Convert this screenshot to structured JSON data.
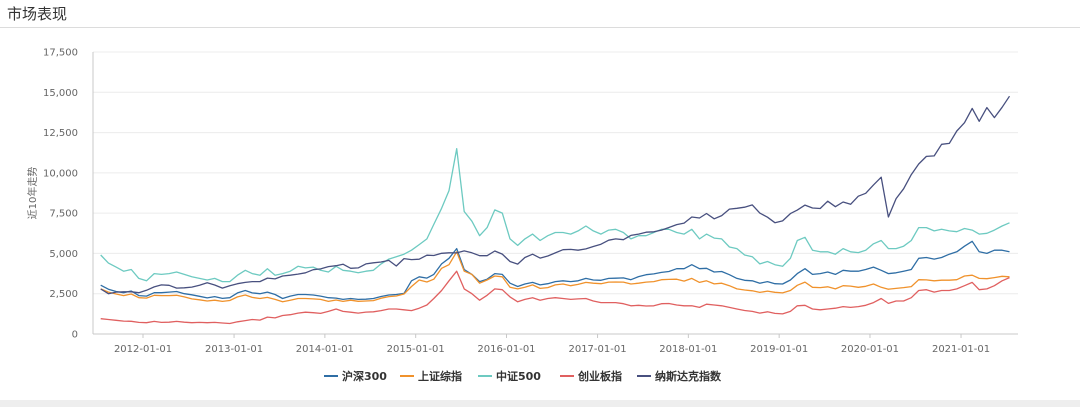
{
  "section": {
    "title": "市场表现"
  },
  "chart_data": {
    "type": "line",
    "xlabel": "",
    "ylabel": "近10年走势",
    "ylim": [
      0,
      17500
    ],
    "xlim": [
      "2011-06-14",
      "2021-08-18"
    ],
    "y_ticks": [
      "0",
      "2,500",
      "5,000",
      "7,500",
      "10,000",
      "12,500",
      "15,000",
      "17,500"
    ],
    "x_ticks": [
      "2012-01-01",
      "2013-01-01",
      "2014-01-01",
      "2015-01-01",
      "2016-01-01",
      "2017-01-01",
      "2018-01-01",
      "2019-01-01",
      "2020-01-01",
      "2021-01-01"
    ],
    "grid": true,
    "legend_position": "bottom",
    "x": [
      "2011-07-15",
      "2011-08-15",
      "2011-09-15",
      "2011-10-15",
      "2011-11-15",
      "2011-12-15",
      "2012-01-15",
      "2012-02-15",
      "2012-03-15",
      "2012-04-15",
      "2012-05-15",
      "2012-06-15",
      "2012-07-15",
      "2012-08-15",
      "2012-09-15",
      "2012-10-15",
      "2012-11-15",
      "2012-12-15",
      "2013-01-15",
      "2013-02-15",
      "2013-03-15",
      "2013-04-15",
      "2013-05-15",
      "2013-06-15",
      "2013-07-15",
      "2013-08-15",
      "2013-09-15",
      "2013-10-15",
      "2013-11-15",
      "2013-12-15",
      "2014-01-15",
      "2014-02-15",
      "2014-03-15",
      "2014-04-15",
      "2014-05-15",
      "2014-06-15",
      "2014-07-15",
      "2014-08-15",
      "2014-09-15",
      "2014-10-15",
      "2014-11-15",
      "2014-12-15",
      "2015-01-15",
      "2015-02-15",
      "2015-03-15",
      "2015-04-15",
      "2015-05-15",
      "2015-06-15",
      "2015-07-15",
      "2015-08-15",
      "2015-09-15",
      "2015-10-15",
      "2015-11-15",
      "2015-12-15",
      "2016-01-15",
      "2016-02-15",
      "2016-03-15",
      "2016-04-15",
      "2016-05-15",
      "2016-06-15",
      "2016-07-15",
      "2016-08-15",
      "2016-09-15",
      "2016-10-15",
      "2016-11-15",
      "2016-12-15",
      "2017-01-15",
      "2017-02-15",
      "2017-03-15",
      "2017-04-15",
      "2017-05-15",
      "2017-06-15",
      "2017-07-15",
      "2017-08-15",
      "2017-09-15",
      "2017-10-15",
      "2017-11-15",
      "2017-12-15",
      "2018-01-15",
      "2018-02-15",
      "2018-03-15",
      "2018-04-15",
      "2018-05-15",
      "2018-06-15",
      "2018-07-15",
      "2018-08-15",
      "2018-09-15",
      "2018-10-15",
      "2018-11-15",
      "2018-12-15",
      "2019-01-15",
      "2019-02-15",
      "2019-03-15",
      "2019-04-15",
      "2019-05-15",
      "2019-06-15",
      "2019-07-15",
      "2019-08-15",
      "2019-09-15",
      "2019-10-15",
      "2019-11-15",
      "2019-12-15",
      "2020-01-15",
      "2020-02-15",
      "2020-03-15",
      "2020-04-15",
      "2020-05-15",
      "2020-06-15",
      "2020-07-15",
      "2020-08-15",
      "2020-09-15",
      "2020-10-15",
      "2020-11-15",
      "2020-12-15",
      "2021-01-15",
      "2021-02-15",
      "2021-03-15",
      "2021-04-15",
      "2021-05-15",
      "2021-06-15",
      "2021-07-15"
    ],
    "series": [
      {
        "name": "沪深300",
        "color": "#2f6ea5",
        "values": [
          3030,
          2780,
          2640,
          2560,
          2670,
          2380,
          2350,
          2560,
          2560,
          2600,
          2640,
          2500,
          2430,
          2340,
          2240,
          2320,
          2210,
          2250,
          2550,
          2700,
          2550,
          2500,
          2600,
          2450,
          2200,
          2350,
          2450,
          2450,
          2420,
          2350,
          2250,
          2230,
          2150,
          2200,
          2150,
          2160,
          2200,
          2330,
          2420,
          2450,
          2520,
          3300,
          3550,
          3470,
          3700,
          4350,
          4700,
          5300,
          4000,
          3700,
          3250,
          3400,
          3750,
          3700,
          3150,
          2950,
          3100,
          3200,
          3050,
          3120,
          3250,
          3300,
          3250,
          3300,
          3450,
          3350,
          3330,
          3450,
          3460,
          3480,
          3370,
          3560,
          3680,
          3730,
          3820,
          3880,
          4050,
          4050,
          4300,
          4050,
          4080,
          3850,
          3880,
          3680,
          3450,
          3330,
          3300,
          3150,
          3250,
          3120,
          3100,
          3350,
          3750,
          4050,
          3700,
          3750,
          3850,
          3700,
          3950,
          3900,
          3900,
          4000,
          4150,
          3950,
          3750,
          3800,
          3900,
          4000,
          4700,
          4750,
          4650,
          4750,
          4950,
          5100,
          5450,
          5750,
          5100,
          5000,
          5200,
          5200,
          5100
        ]
      },
      {
        "name": "上证综指",
        "color": "#f0922c",
        "values": [
          2800,
          2600,
          2480,
          2380,
          2480,
          2250,
          2230,
          2400,
          2380,
          2380,
          2400,
          2300,
          2180,
          2120,
          2050,
          2100,
          2020,
          2080,
          2300,
          2420,
          2270,
          2200,
          2270,
          2150,
          2000,
          2100,
          2200,
          2200,
          2180,
          2150,
          2020,
          2110,
          2020,
          2100,
          2030,
          2050,
          2070,
          2220,
          2320,
          2360,
          2480,
          2950,
          3350,
          3230,
          3400,
          4080,
          4300,
          5100,
          3900,
          3700,
          3150,
          3350,
          3600,
          3550,
          2900,
          2800,
          2900,
          3050,
          2830,
          2880,
          3050,
          3100,
          3000,
          3080,
          3200,
          3150,
          3120,
          3220,
          3230,
          3220,
          3100,
          3150,
          3220,
          3250,
          3370,
          3390,
          3400,
          3280,
          3450,
          3200,
          3300,
          3110,
          3150,
          3000,
          2800,
          2730,
          2680,
          2580,
          2660,
          2590,
          2550,
          2700,
          3020,
          3220,
          2900,
          2880,
          2930,
          2800,
          3000,
          2970,
          2900,
          2960,
          3100,
          2900,
          2780,
          2830,
          2880,
          2940,
          3370,
          3360,
          3300,
          3340,
          3340,
          3370,
          3600,
          3650,
          3450,
          3430,
          3500,
          3580,
          3550
        ]
      },
      {
        "name": "中证500",
        "color": "#6dcac1",
        "values": [
          4900,
          4400,
          4150,
          3900,
          4000,
          3450,
          3300,
          3750,
          3700,
          3750,
          3850,
          3700,
          3550,
          3450,
          3350,
          3450,
          3250,
          3250,
          3650,
          3950,
          3750,
          3650,
          4050,
          3650,
          3750,
          3900,
          4200,
          4100,
          4150,
          3950,
          3850,
          4200,
          3950,
          3900,
          3800,
          3900,
          3950,
          4350,
          4650,
          4800,
          4950,
          5200,
          5550,
          5900,
          6800,
          7800,
          8900,
          11500,
          7600,
          7000,
          6100,
          6600,
          7700,
          7500,
          5900,
          5500,
          5900,
          6200,
          5800,
          6100,
          6300,
          6300,
          6200,
          6400,
          6700,
          6400,
          6200,
          6450,
          6500,
          6300,
          5900,
          6100,
          6100,
          6300,
          6500,
          6500,
          6300,
          6200,
          6500,
          5900,
          6200,
          5950,
          5900,
          5400,
          5300,
          4900,
          4800,
          4350,
          4500,
          4300,
          4200,
          4700,
          5800,
          6000,
          5200,
          5100,
          5100,
          4950,
          5300,
          5100,
          5050,
          5200,
          5600,
          5800,
          5300,
          5300,
          5450,
          5800,
          6600,
          6600,
          6400,
          6500,
          6400,
          6350,
          6550,
          6450,
          6200,
          6250,
          6450,
          6700,
          6900
        ]
      },
      {
        "name": "创业板指",
        "color": "#e06060",
        "values": [
          950,
          900,
          850,
          800,
          790,
          720,
          700,
          780,
          720,
          730,
          780,
          730,
          700,
          720,
          700,
          720,
          680,
          650,
          760,
          830,
          900,
          860,
          1050,
          1000,
          1150,
          1200,
          1300,
          1350,
          1320,
          1280,
          1400,
          1550,
          1400,
          1350,
          1300,
          1360,
          1380,
          1450,
          1550,
          1550,
          1500,
          1450,
          1600,
          1800,
          2200,
          2700,
          3300,
          3900,
          2800,
          2500,
          2100,
          2400,
          2800,
          2750,
          2300,
          2000,
          2150,
          2250,
          2100,
          2200,
          2250,
          2200,
          2150,
          2180,
          2200,
          2050,
          1950,
          1950,
          1950,
          1880,
          1750,
          1780,
          1740,
          1750,
          1880,
          1890,
          1800,
          1750,
          1750,
          1650,
          1850,
          1800,
          1750,
          1650,
          1550,
          1460,
          1400,
          1300,
          1380,
          1280,
          1250,
          1400,
          1750,
          1780,
          1550,
          1500,
          1550,
          1600,
          1700,
          1650,
          1700,
          1780,
          1950,
          2200,
          1900,
          2050,
          2050,
          2250,
          2700,
          2750,
          2600,
          2700,
          2700,
          2800,
          3000,
          3200,
          2750,
          2800,
          3000,
          3300,
          3500
        ]
      },
      {
        "name": "纳斯达克指数",
        "color": "#48507f",
        "values": [
          2790,
          2500,
          2600,
          2620,
          2620,
          2560,
          2710,
          2920,
          3050,
          3020,
          2850,
          2870,
          2910,
          3020,
          3180,
          3040,
          2850,
          3000,
          3120,
          3200,
          3250,
          3250,
          3470,
          3420,
          3600,
          3650,
          3720,
          3800,
          3990,
          4040,
          4180,
          4240,
          4330,
          4080,
          4100,
          4350,
          4420,
          4470,
          4570,
          4220,
          4680,
          4620,
          4640,
          4890,
          4870,
          5010,
          5040,
          5030,
          5160,
          5040,
          4860,
          4860,
          5150,
          4960,
          4500,
          4340,
          4750,
          4950,
          4710,
          4840,
          5030,
          5230,
          5250,
          5200,
          5280,
          5430,
          5570,
          5820,
          5900,
          5850,
          6120,
          6200,
          6320,
          6340,
          6450,
          6610,
          6790,
          6880,
          7260,
          7200,
          7480,
          7150,
          7350,
          7750,
          7800,
          7870,
          8010,
          7500,
          7250,
          6910,
          7020,
          7470,
          7690,
          8000,
          7820,
          7790,
          8240,
          7900,
          8190,
          8050,
          8550,
          8730,
          9250,
          9730,
          7260,
          8400,
          9010,
          9890,
          10550,
          11020,
          11050,
          11770,
          11830,
          12600,
          13110,
          14000,
          13200,
          14050,
          13430,
          14070,
          14760
        ]
      }
    ]
  }
}
